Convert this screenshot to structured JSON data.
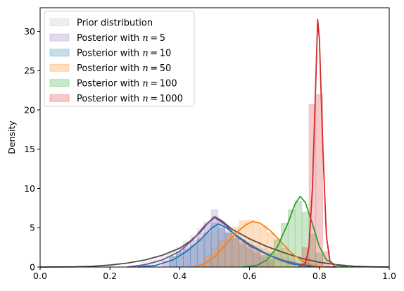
{
  "chart_data": {
    "type": "area",
    "title": "",
    "xlabel": "",
    "ylabel": "Density",
    "xlim": [
      0.0,
      1.0
    ],
    "ylim": [
      0,
      33
    ],
    "xticks": [
      "0.0",
      "0.2",
      "0.4",
      "0.6",
      "0.8",
      "1.0"
    ],
    "yticks": [
      "0",
      "5",
      "10",
      "15",
      "20",
      "25",
      "30"
    ],
    "legend_position": "top-left",
    "series": [
      {
        "name": "Prior distribution",
        "color": "#bdbdbd",
        "kde_color": "#5a4a4a",
        "hist": [
          [
            0.3,
            0.6
          ],
          [
            0.32,
            0.9
          ],
          [
            0.34,
            1.2
          ],
          [
            0.36,
            1.6
          ],
          [
            0.38,
            2.1
          ],
          [
            0.4,
            2.6
          ],
          [
            0.42,
            3.3
          ],
          [
            0.44,
            4.0
          ],
          [
            0.46,
            4.9
          ],
          [
            0.48,
            5.8
          ],
          [
            0.5,
            6.4
          ],
          [
            0.52,
            5.5
          ],
          [
            0.54,
            4.7
          ],
          [
            0.56,
            4.1
          ],
          [
            0.58,
            3.6
          ],
          [
            0.6,
            3.2
          ],
          [
            0.62,
            2.8
          ],
          [
            0.64,
            2.4
          ],
          [
            0.66,
            2.0
          ],
          [
            0.68,
            1.7
          ],
          [
            0.7,
            1.4
          ],
          [
            0.72,
            1.1
          ],
          [
            0.74,
            0.9
          ],
          [
            0.76,
            0.6
          ],
          [
            0.78,
            0.4
          ]
        ],
        "kde": [
          [
            0.0,
            0.0
          ],
          [
            0.1,
            0.03
          ],
          [
            0.15,
            0.1
          ],
          [
            0.2,
            0.25
          ],
          [
            0.25,
            0.5
          ],
          [
            0.3,
            0.9
          ],
          [
            0.35,
            1.5
          ],
          [
            0.4,
            2.4
          ],
          [
            0.43,
            3.3
          ],
          [
            0.46,
            4.5
          ],
          [
            0.48,
            5.6
          ],
          [
            0.5,
            6.4
          ],
          [
            0.52,
            5.9
          ],
          [
            0.55,
            4.8
          ],
          [
            0.6,
            3.6
          ],
          [
            0.65,
            2.6
          ],
          [
            0.7,
            1.8
          ],
          [
            0.75,
            1.1
          ],
          [
            0.8,
            0.6
          ],
          [
            0.85,
            0.3
          ],
          [
            0.9,
            0.1
          ],
          [
            0.95,
            0.03
          ],
          [
            1.0,
            0.0
          ]
        ]
      },
      {
        "name": "Posterior with $n=5$",
        "color": "#9467bd",
        "kde_color": "#7b4f9e",
        "hist": [
          [
            0.36,
            0.8
          ],
          [
            0.38,
            1.3
          ],
          [
            0.4,
            1.9
          ],
          [
            0.42,
            2.6
          ],
          [
            0.44,
            3.4
          ],
          [
            0.46,
            4.3
          ],
          [
            0.48,
            5.6
          ],
          [
            0.5,
            7.3
          ],
          [
            0.52,
            5.8
          ],
          [
            0.54,
            4.5
          ],
          [
            0.56,
            3.6
          ],
          [
            0.58,
            2.9
          ],
          [
            0.6,
            2.3
          ],
          [
            0.62,
            1.8
          ],
          [
            0.64,
            1.3
          ],
          [
            0.66,
            0.9
          ]
        ],
        "kde": [
          [
            0.25,
            0.0
          ],
          [
            0.3,
            0.3
          ],
          [
            0.35,
            0.9
          ],
          [
            0.4,
            2.0
          ],
          [
            0.44,
            3.6
          ],
          [
            0.47,
            5.2
          ],
          [
            0.5,
            6.3
          ],
          [
            0.53,
            5.4
          ],
          [
            0.56,
            4.0
          ],
          [
            0.6,
            2.7
          ],
          [
            0.65,
            1.6
          ],
          [
            0.7,
            0.8
          ],
          [
            0.75,
            0.3
          ],
          [
            0.8,
            0.05
          ],
          [
            0.85,
            0.0
          ]
        ]
      },
      {
        "name": "Posterior with $n=10$",
        "color": "#1f77b4",
        "kde_color": "#1f77b4",
        "hist": [
          [
            0.38,
            1.4
          ],
          [
            0.4,
            1.9
          ],
          [
            0.42,
            2.3
          ],
          [
            0.44,
            2.8
          ],
          [
            0.46,
            3.6
          ],
          [
            0.48,
            4.4
          ],
          [
            0.5,
            5.6
          ],
          [
            0.52,
            5.0
          ],
          [
            0.54,
            4.3
          ],
          [
            0.56,
            3.8
          ],
          [
            0.58,
            3.2
          ],
          [
            0.6,
            2.6
          ],
          [
            0.62,
            2.1
          ],
          [
            0.64,
            1.5
          ]
        ],
        "kde": [
          [
            0.28,
            0.0
          ],
          [
            0.33,
            0.2
          ],
          [
            0.38,
            0.9
          ],
          [
            0.42,
            2.0
          ],
          [
            0.46,
            3.5
          ],
          [
            0.49,
            4.9
          ],
          [
            0.51,
            5.5
          ],
          [
            0.53,
            5.1
          ],
          [
            0.56,
            4.1
          ],
          [
            0.6,
            2.9
          ],
          [
            0.64,
            1.9
          ],
          [
            0.68,
            1.0
          ],
          [
            0.72,
            0.4
          ],
          [
            0.77,
            0.1
          ],
          [
            0.8,
            0.0
          ]
        ]
      },
      {
        "name": "Posterior with $n=50$",
        "color": "#ff7f0e",
        "kde_color": "#ff7f0e",
        "hist": [
          [
            0.48,
            1.5
          ],
          [
            0.5,
            2.5
          ],
          [
            0.52,
            3.4
          ],
          [
            0.54,
            4.3
          ],
          [
            0.56,
            5.1
          ],
          [
            0.58,
            5.9
          ],
          [
            0.6,
            6.0
          ],
          [
            0.62,
            5.6
          ],
          [
            0.64,
            5.2
          ],
          [
            0.66,
            4.4
          ],
          [
            0.68,
            3.4
          ],
          [
            0.7,
            2.4
          ],
          [
            0.72,
            1.5
          ]
        ],
        "kde": [
          [
            0.44,
            0.0
          ],
          [
            0.47,
            0.4
          ],
          [
            0.5,
            1.3
          ],
          [
            0.53,
            2.8
          ],
          [
            0.56,
            4.3
          ],
          [
            0.59,
            5.4
          ],
          [
            0.61,
            5.8
          ],
          [
            0.63,
            5.6
          ],
          [
            0.66,
            4.6
          ],
          [
            0.69,
            3.2
          ],
          [
            0.72,
            1.8
          ],
          [
            0.75,
            0.8
          ],
          [
            0.78,
            0.2
          ],
          [
            0.82,
            0.0
          ]
        ]
      },
      {
        "name": "Posterior with $n=100$",
        "color": "#2ca02c",
        "kde_color": "#2ca02c",
        "hist": [
          [
            0.66,
            1.8
          ],
          [
            0.68,
            3.6
          ],
          [
            0.7,
            5.6
          ],
          [
            0.72,
            7.3
          ],
          [
            0.74,
            8.4
          ],
          [
            0.76,
            7.0
          ],
          [
            0.78,
            4.2
          ],
          [
            0.8,
            1.8
          ]
        ],
        "kde": [
          [
            0.58,
            0.0
          ],
          [
            0.62,
            0.2
          ],
          [
            0.65,
            0.9
          ],
          [
            0.68,
            2.6
          ],
          [
            0.71,
            5.6
          ],
          [
            0.73,
            8.0
          ],
          [
            0.745,
            9.0
          ],
          [
            0.76,
            8.2
          ],
          [
            0.78,
            5.5
          ],
          [
            0.8,
            2.6
          ],
          [
            0.82,
            0.9
          ],
          [
            0.85,
            0.2
          ],
          [
            0.88,
            0.0
          ]
        ]
      },
      {
        "name": "Posterior with $n=1000$",
        "color": "#d62728",
        "kde_color": "#d62728",
        "hist": [
          [
            0.76,
            2.5
          ],
          [
            0.78,
            20.7
          ],
          [
            0.8,
            22.0
          ],
          [
            0.82,
            2.0
          ]
        ],
        "kde": [
          [
            0.74,
            0.0
          ],
          [
            0.76,
            0.5
          ],
          [
            0.77,
            2.5
          ],
          [
            0.78,
            10.0
          ],
          [
            0.79,
            24.0
          ],
          [
            0.795,
            31.5
          ],
          [
            0.8,
            29.0
          ],
          [
            0.81,
            15.0
          ],
          [
            0.82,
            4.0
          ],
          [
            0.83,
            0.8
          ],
          [
            0.845,
            0.0
          ]
        ]
      }
    ]
  }
}
